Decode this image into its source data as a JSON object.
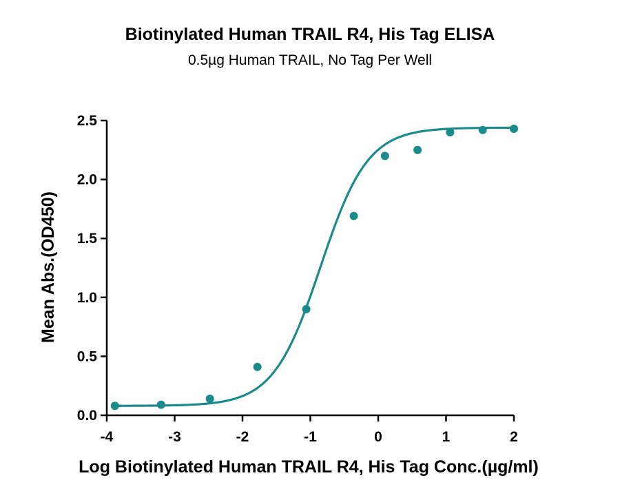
{
  "chart_data": {
    "type": "scatter",
    "title": "Biotinylated Human TRAIL R4, His Tag ELISA",
    "subtitle": "0.5µg Human TRAIL, No Tag Per Well",
    "xlabel": "Log Biotinylated Human TRAIL R4, His Tag Conc.(µg/ml)",
    "ylabel": "Mean Abs.(OD450)",
    "xlim": [
      -4,
      2
    ],
    "ylim": [
      0,
      2.5
    ],
    "x_ticks": [
      "-4",
      "-3",
      "-2",
      "-1",
      "0",
      "1",
      "2"
    ],
    "y_ticks": [
      "0.0",
      "0.5",
      "1.0",
      "1.5",
      "2.0",
      "2.5"
    ],
    "grid": false,
    "color": "#1a8a8a",
    "series": [
      {
        "points": [
          {
            "x": -3.88,
            "y": 0.08
          },
          {
            "x": -3.2,
            "y": 0.09
          },
          {
            "x": -2.48,
            "y": 0.14
          },
          {
            "x": -1.78,
            "y": 0.41
          },
          {
            "x": -1.06,
            "y": 0.9
          },
          {
            "x": -0.36,
            "y": 1.69
          },
          {
            "x": 0.1,
            "y": 2.2
          },
          {
            "x": 0.58,
            "y": 2.25
          },
          {
            "x": 1.06,
            "y": 2.4
          },
          {
            "x": 1.54,
            "y": 2.42
          },
          {
            "x": 2.0,
            "y": 2.43
          }
        ],
        "fit": {
          "model": "4PL",
          "bottom": 0.08,
          "top": 2.44,
          "logEC50": -0.85,
          "hill": 1.25
        }
      }
    ]
  }
}
